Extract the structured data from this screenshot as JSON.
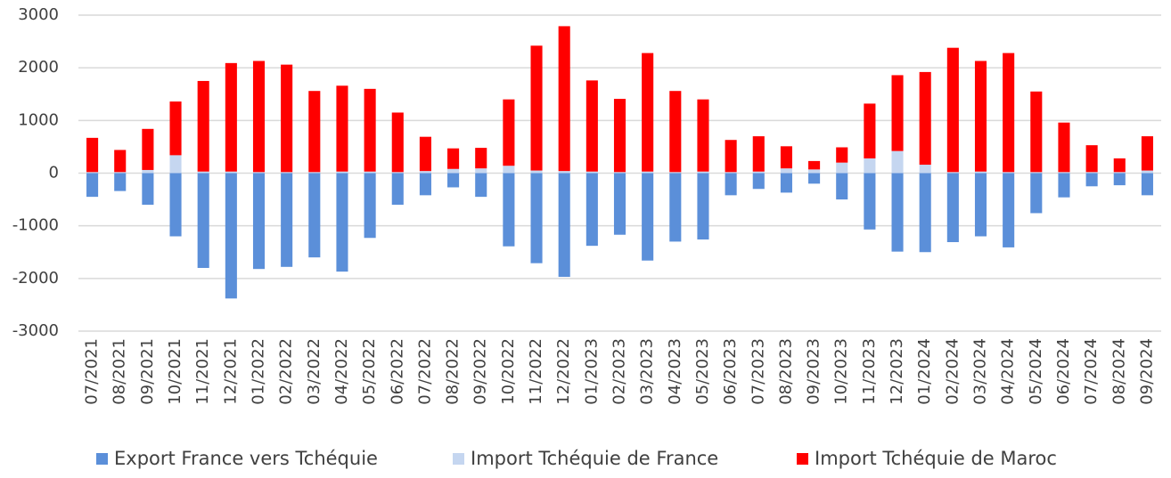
{
  "chart_data": {
    "type": "stacked_bar",
    "categories": [
      "07/2021",
      "08/2021",
      "09/2021",
      "10/2021",
      "11/2021",
      "12/2021",
      "01/2022",
      "02/2022",
      "03/2022",
      "04/2022",
      "05/2022",
      "06/2022",
      "07/2022",
      "08/2022",
      "09/2022",
      "10/2022",
      "11/2022",
      "12/2022",
      "01/2023",
      "02/2023",
      "03/2023",
      "04/2023",
      "05/2023",
      "06/2023",
      "07/2023",
      "08/2023",
      "09/2023",
      "10/2023",
      "11/2023",
      "12/2023",
      "01/2024",
      "02/2024",
      "03/2024",
      "04/2024",
      "05/2024",
      "06/2024",
      "07/2024",
      "08/2024",
      "09/2024"
    ],
    "series": [
      {
        "name": "Export France vers Tchéquie",
        "color": "#5b8fd9",
        "values": [
          -450,
          -340,
          -600,
          -1200,
          -1800,
          -2380,
          -1820,
          -1780,
          -1600,
          -1870,
          -1230,
          -600,
          -420,
          -270,
          -450,
          -1390,
          -1710,
          -1970,
          -1380,
          -1170,
          -1660,
          -1300,
          -1260,
          -420,
          -300,
          -370,
          -200,
          -500,
          -1070,
          -1490,
          -1500,
          -1310,
          -1200,
          -1410,
          -760,
          -460,
          -250,
          -230,
          -420
        ]
      },
      {
        "name": "Import Tchéquie de France",
        "color": "#c5d6f0",
        "values": [
          20,
          20,
          60,
          340,
          30,
          30,
          20,
          20,
          20,
          30,
          30,
          20,
          40,
          80,
          90,
          140,
          50,
          40,
          30,
          20,
          30,
          20,
          30,
          20,
          30,
          90,
          70,
          200,
          280,
          420,
          160,
          20,
          30,
          20,
          20,
          20,
          20,
          20,
          50
        ]
      },
      {
        "name": "Import Tchéquie de Maroc",
        "color": "#ff0000",
        "values": [
          650,
          420,
          780,
          1020,
          1720,
          2060,
          2110,
          2040,
          1540,
          1630,
          1570,
          1130,
          650,
          390,
          390,
          1260,
          2370,
          2750,
          1730,
          1390,
          2250,
          1540,
          1370,
          610,
          670,
          420,
          160,
          290,
          1040,
          1440,
          1760,
          2360,
          2100,
          2260,
          1530,
          940,
          510,
          260,
          650
        ]
      }
    ],
    "ylim": [
      -3000,
      3000
    ],
    "yticks": [
      -3000,
      -2000,
      -1000,
      0,
      1000,
      2000,
      3000
    ],
    "grid": true,
    "legend": "bottom"
  }
}
